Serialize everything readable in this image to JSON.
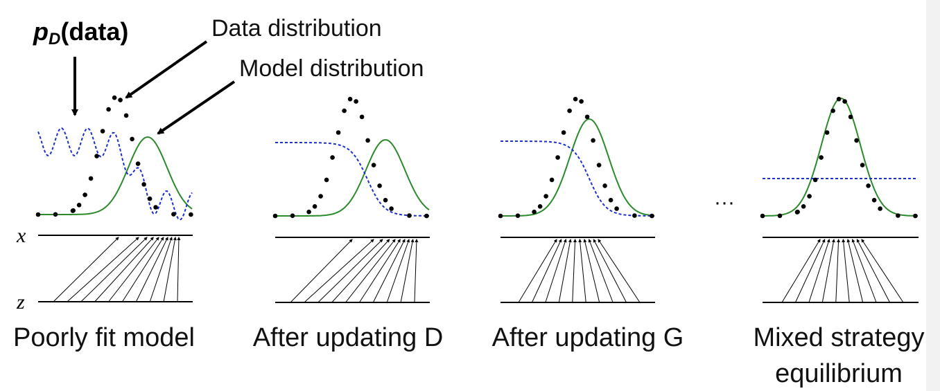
{
  "annotations": {
    "pd_symbol": "p",
    "pd_subscript": "D",
    "pd_argument": "(data)",
    "data_distribution": "Data distribution",
    "model_distribution": "Model distribution"
  },
  "axis_labels": {
    "x": "x",
    "z": "z"
  },
  "ellipsis": "···",
  "panels": [
    {
      "caption": [
        "Poorly fit model"
      ]
    },
    {
      "caption": [
        "After updating D"
      ]
    },
    {
      "caption": [
        "After updating G"
      ]
    },
    {
      "caption": [
        "Mixed strategy",
        "equilibrium"
      ]
    }
  ]
}
